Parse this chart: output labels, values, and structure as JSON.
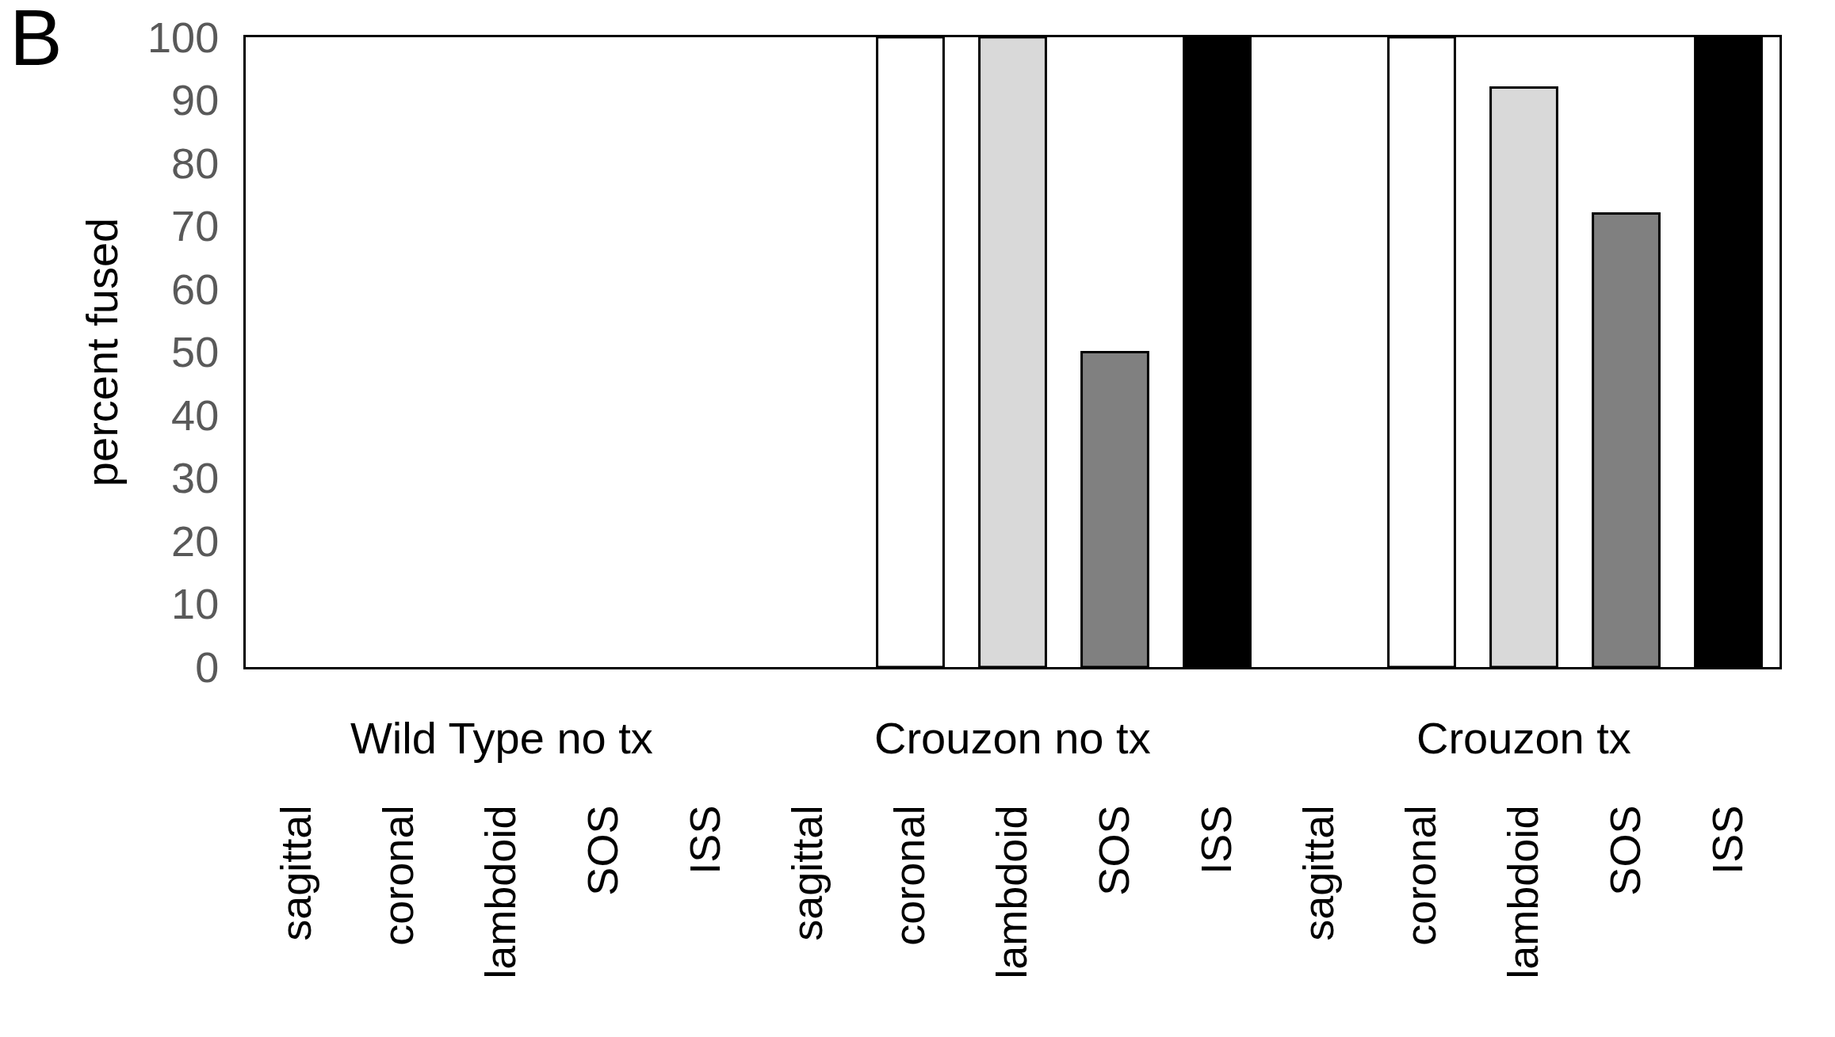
{
  "chart_data": {
    "type": "bar",
    "ylabel": "percent fused",
    "categories": [
      "sagittal",
      "coronal",
      "lambdoid",
      "SOS",
      "ISS",
      "sagittal",
      "coronal",
      "lambdoid",
      "SOS",
      "ISS",
      "sagittal",
      "coronal",
      "lambdoid",
      "SOS",
      "ISS"
    ],
    "values": [
      0,
      0,
      0,
      0,
      0,
      0,
      100,
      100,
      50,
      100,
      0,
      100,
      92,
      72,
      100
    ],
    "colors": [
      "#ffffff",
      "#ffffff",
      "#d9d9d9",
      "#808080",
      "#000000",
      "#ffffff",
      "#ffffff",
      "#d9d9d9",
      "#808080",
      "#000000",
      "#ffffff",
      "#ffffff",
      "#d9d9d9",
      "#808080",
      "#000000"
    ],
    "ylim": [
      0,
      100
    ],
    "yticks": [
      0,
      10,
      20,
      30,
      40,
      50,
      60,
      70,
      80,
      90,
      100
    ],
    "grid": false,
    "legend": false,
    "annotations": [
      "B",
      "Wild Type no tx",
      "Crouzon no tx",
      "Crouzon tx"
    ]
  }
}
